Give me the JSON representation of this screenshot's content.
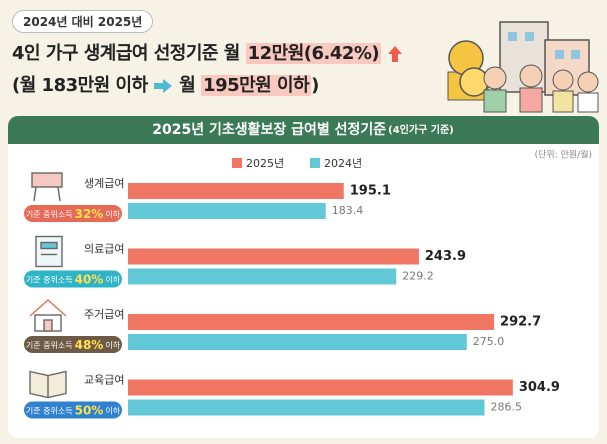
{
  "header": {
    "badge": "2024년 대비 2025년",
    "headline": [
      "4인 가구 생계급여 선정기준 월",
      "12만원(6.42%)"
    ],
    "subline": [
      "(월 183만원 이하",
      "월",
      "195만원 이하",
      ")"
    ]
  },
  "chart_data": {
    "type": "bar",
    "orientation": "horizontal",
    "title": "2025년 기초생활보장 급여별 선정기준",
    "subtitle": "(4인가구 기준)",
    "unit": "(단위: 만원/월)",
    "categories": [
      "생계급여",
      "의료급여",
      "주거급여",
      "교육급여"
    ],
    "criteria": [
      {
        "label": "기준 중위소득",
        "value": "32%",
        "suffix": "이하",
        "color": "#e66a57"
      },
      {
        "label": "기준 중위소득",
        "value": "40%",
        "suffix": "이하",
        "color": "#2fb3c6"
      },
      {
        "label": "기준 중위소득",
        "value": "48%",
        "suffix": "이하",
        "color": "#6e5a45"
      },
      {
        "label": "기준 중위소득",
        "value": "50%",
        "suffix": "이하",
        "color": "#2f82cf"
      }
    ],
    "series": [
      {
        "name": "2025년",
        "color": "#f07563",
        "values": [
          195.1,
          243.9,
          292.7,
          304.9
        ],
        "value_labels": [
          "195.1",
          "243.9",
          "292.7",
          "304.9"
        ]
      },
      {
        "name": "2024년",
        "color": "#62c8d8",
        "values": [
          183.4,
          229.2,
          275.0,
          286.5
        ],
        "value_labels": [
          "183.4",
          "229.2",
          "275.0",
          "286.5"
        ]
      }
    ],
    "xlim": [
      55,
      355
    ]
  }
}
